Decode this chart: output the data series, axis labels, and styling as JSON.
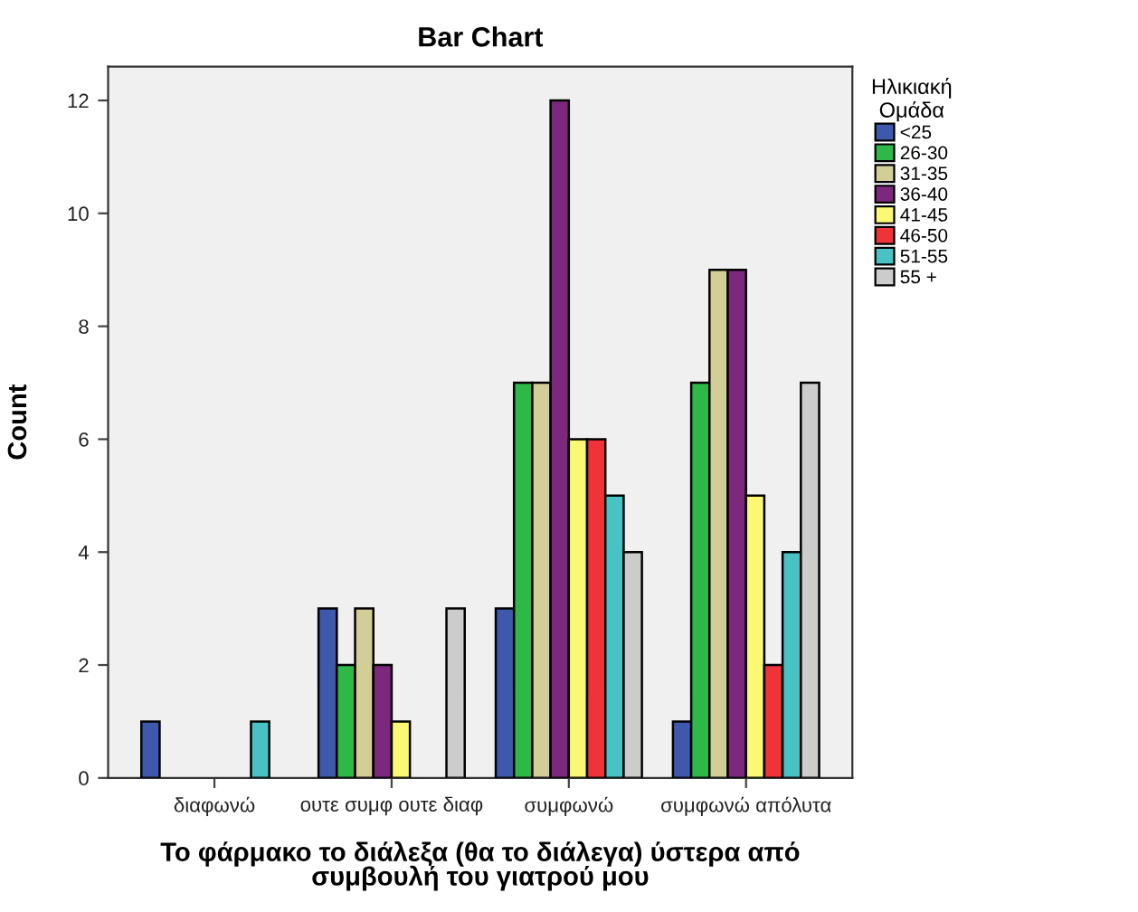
{
  "chart_data": {
    "type": "bar",
    "title": "Bar Chart",
    "xlabel": "Το φάρμακο το διάλεξα (θα το διάλεγα) ύστερα από\nσυμβουλή του γιατρού μου",
    "ylabel": "Count",
    "categories": [
      "διαφωνώ",
      "ουτε συμφ ουτε διαφ",
      "συμφωνώ",
      "συμφωνώ απόλυτα"
    ],
    "legend_title": "Ηλικιακή\nΟμάδα",
    "series": [
      {
        "name": "<25",
        "color": "#3e58ac",
        "values": [
          1,
          3,
          3,
          1
        ]
      },
      {
        "name": "26-30",
        "color": "#2eb848",
        "values": [
          null,
          2,
          7,
          7
        ]
      },
      {
        "name": "31-35",
        "color": "#d3ce97",
        "values": [
          null,
          3,
          7,
          9
        ]
      },
      {
        "name": "36-40",
        "color": "#7c287d",
        "values": [
          null,
          2,
          12,
          9
        ]
      },
      {
        "name": "41-45",
        "color": "#fbf873",
        "values": [
          null,
          1,
          6,
          5
        ]
      },
      {
        "name": "46-50",
        "color": "#ef3338",
        "values": [
          null,
          null,
          6,
          2
        ]
      },
      {
        "name": "51-55",
        "color": "#48c2c5",
        "values": [
          1,
          null,
          5,
          4
        ]
      },
      {
        "name": "55 +",
        "color": "#cccccc",
        "values": [
          null,
          3,
          4,
          7
        ]
      }
    ],
    "ylim": [
      0,
      12.6
    ],
    "yticks": [
      0,
      2,
      4,
      6,
      8,
      10,
      12
    ],
    "grid": false,
    "legend": "right"
  }
}
